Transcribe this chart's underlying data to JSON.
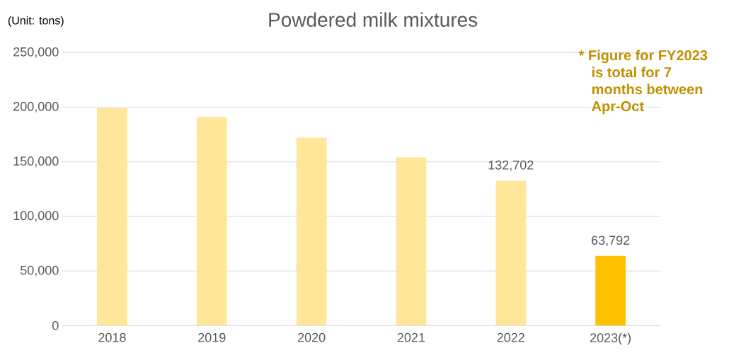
{
  "chart_data": {
    "type": "bar",
    "title": "Powdered milk mixtures",
    "ylabel": "(Unit: tons)",
    "categories": [
      "2018",
      "2019",
      "2020",
      "2021",
      "2022",
      "2023(*)"
    ],
    "values": [
      199000,
      191000,
      172000,
      154000,
      132702,
      63792
    ],
    "colors": [
      "#ffe699",
      "#ffe699",
      "#ffe699",
      "#ffe699",
      "#ffe699",
      "#ffc000"
    ],
    "value_labels": [
      null,
      null,
      null,
      null,
      "132,702",
      "63,792"
    ],
    "ylim": [
      0,
      250000
    ],
    "yticks": [
      {
        "value": 0,
        "label": "0"
      },
      {
        "value": 50000,
        "label": "50,000"
      },
      {
        "value": 100000,
        "label": "100,000"
      },
      {
        "value": 150000,
        "label": "150,000"
      },
      {
        "value": 200000,
        "label": "200,000"
      },
      {
        "value": 250000,
        "label": "250,000"
      }
    ],
    "grid": "y",
    "annotations": [
      "* Figure for FY2023 is total for 7 months between Apr-Oct"
    ]
  }
}
